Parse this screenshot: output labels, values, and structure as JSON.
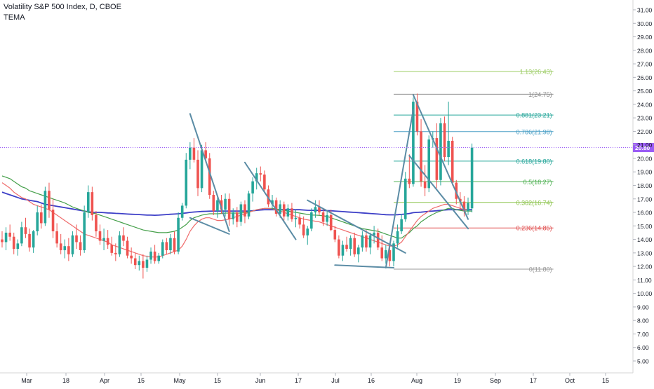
{
  "header": {
    "title": "Volatility S&P 500 Index, D, CBOE",
    "indicator": "TEMA"
  },
  "colors": {
    "up": "#26a69a",
    "down": "#ef5350",
    "ma_blue": "#3d3fc7",
    "ma_green": "#46a04b",
    "ma_red": "#ef6c6c",
    "trendline": "#5b8ca5",
    "price_line": "#9a5cf5"
  },
  "chart_data": {
    "type": "candlestick",
    "symbol": "Volatility S&P 500 Index",
    "interval": "D",
    "exchange": "CBOE",
    "indicators": [
      "TEMA"
    ],
    "current_price": 20.8,
    "current_price_label": "20.80",
    "ylim": [
      4.6,
      31.6
    ],
    "y_ticks": [
      "5.00",
      "6.00",
      "7.00",
      "8.00",
      "9.00",
      "10.00",
      "11.00",
      "12.00",
      "13.00",
      "14.00",
      "15.00",
      "16.00",
      "17.00",
      "18.00",
      "19.00",
      "20.00",
      "21.00",
      "22.00",
      "23.00",
      "24.00",
      "25.00",
      "26.00",
      "27.00",
      "28.00",
      "29.00",
      "30.00",
      "31.00"
    ],
    "x_ticks": [
      "Mar",
      "18",
      "Apr",
      "15",
      "May",
      "15",
      "Jun",
      "17",
      "Jul",
      "16",
      "Aug",
      "19",
      "Sep",
      "17",
      "Oct",
      "15"
    ],
    "candles": [
      [
        14.0,
        14.6,
        13.4,
        13.8
      ],
      [
        13.8,
        14.9,
        13.2,
        14.5
      ],
      [
        14.5,
        15.1,
        13.9,
        14.2
      ],
      [
        14.2,
        14.5,
        12.9,
        13.3
      ],
      [
        13.3,
        14.0,
        12.8,
        13.7
      ],
      [
        13.7,
        15.3,
        13.5,
        14.9
      ],
      [
        14.9,
        15.6,
        14.1,
        14.4
      ],
      [
        14.4,
        14.8,
        13.1,
        13.4
      ],
      [
        13.4,
        14.7,
        13.0,
        14.6
      ],
      [
        14.6,
        16.5,
        14.3,
        16.0
      ],
      [
        16.0,
        16.6,
        14.8,
        15.2
      ],
      [
        15.2,
        17.9,
        15.0,
        17.6
      ],
      [
        17.6,
        18.2,
        15.6,
        16.2
      ],
      [
        16.2,
        17.0,
        14.1,
        14.6
      ],
      [
        14.6,
        15.2,
        13.4,
        13.7
      ],
      [
        13.7,
        14.4,
        12.9,
        13.2
      ],
      [
        13.2,
        14.0,
        12.6,
        13.5
      ],
      [
        13.5,
        14.1,
        12.4,
        12.9
      ],
      [
        12.9,
        14.6,
        12.7,
        14.3
      ],
      [
        14.3,
        15.1,
        13.3,
        13.8
      ],
      [
        13.8,
        14.3,
        12.8,
        13.2
      ],
      [
        13.2,
        16.5,
        13.0,
        16.0
      ],
      [
        16.0,
        18.0,
        15.6,
        17.5
      ],
      [
        17.5,
        17.9,
        15.4,
        15.8
      ],
      [
        15.8,
        16.1,
        14.2,
        14.6
      ],
      [
        14.6,
        15.1,
        13.6,
        13.9
      ],
      [
        13.9,
        14.8,
        13.2,
        14.1
      ],
      [
        14.1,
        14.7,
        13.3,
        13.6
      ],
      [
        13.6,
        14.2,
        12.8,
        13.0
      ],
      [
        13.0,
        13.7,
        12.4,
        12.9
      ],
      [
        12.9,
        14.6,
        12.7,
        14.3
      ],
      [
        14.3,
        14.9,
        13.5,
        13.9
      ],
      [
        13.9,
        14.2,
        12.6,
        12.8
      ],
      [
        12.8,
        13.4,
        12.2,
        12.6
      ],
      [
        12.6,
        13.0,
        11.8,
        12.1
      ],
      [
        12.1,
        12.8,
        11.7,
        12.4
      ],
      [
        12.4,
        12.9,
        11.1,
        11.9
      ],
      [
        11.9,
        12.8,
        11.6,
        12.5
      ],
      [
        12.5,
        13.4,
        12.2,
        13.1
      ],
      [
        13.1,
        13.6,
        12.2,
        12.4
      ],
      [
        12.4,
        13.0,
        12.2,
        12.8
      ],
      [
        12.8,
        14.0,
        12.6,
        13.8
      ],
      [
        13.8,
        14.1,
        12.9,
        13.2
      ],
      [
        13.2,
        14.4,
        12.9,
        14.1
      ],
      [
        14.1,
        14.6,
        12.9,
        13.1
      ],
      [
        13.1,
        16.0,
        12.9,
        15.6
      ],
      [
        15.6,
        16.7,
        15.4,
        16.5
      ],
      [
        16.5,
        20.4,
        16.3,
        19.9
      ],
      [
        19.9,
        21.2,
        19.2,
        20.8
      ],
      [
        20.8,
        21.5,
        19.7,
        19.9
      ],
      [
        19.9,
        20.6,
        17.2,
        17.8
      ],
      [
        17.8,
        21.0,
        17.5,
        20.6
      ],
      [
        20.6,
        21.2,
        19.7,
        20.0
      ],
      [
        20.0,
        20.4,
        17.0,
        17.3
      ],
      [
        17.3,
        17.6,
        15.8,
        16.1
      ],
      [
        16.1,
        17.2,
        15.6,
        16.9
      ],
      [
        16.9,
        17.3,
        15.9,
        16.2
      ],
      [
        16.2,
        17.4,
        15.7,
        17.0
      ],
      [
        17.0,
        17.4,
        15.0,
        15.5
      ],
      [
        15.5,
        16.3,
        15.1,
        16.0
      ],
      [
        16.0,
        16.4,
        14.9,
        15.3
      ],
      [
        15.3,
        16.8,
        15.0,
        16.6
      ],
      [
        16.6,
        16.9,
        15.2,
        15.7
      ],
      [
        15.7,
        17.6,
        15.5,
        17.4
      ],
      [
        17.4,
        18.6,
        16.8,
        18.3
      ],
      [
        18.3,
        19.3,
        17.7,
        18.9
      ],
      [
        18.9,
        19.4,
        18.3,
        18.8
      ],
      [
        18.8,
        19.1,
        17.5,
        17.7
      ],
      [
        17.7,
        18.0,
        16.4,
        16.6
      ],
      [
        16.6,
        17.3,
        16.2,
        16.9
      ],
      [
        16.9,
        17.1,
        15.7,
        15.9
      ],
      [
        15.9,
        16.9,
        15.6,
        16.6
      ],
      [
        16.6,
        16.8,
        15.4,
        15.7
      ],
      [
        15.7,
        16.6,
        15.4,
        16.3
      ],
      [
        16.3,
        16.7,
        15.3,
        15.5
      ],
      [
        15.5,
        16.2,
        14.9,
        15.6
      ],
      [
        15.6,
        15.9,
        14.8,
        15.1
      ],
      [
        15.1,
        15.7,
        14.1,
        14.3
      ],
      [
        14.3,
        15.0,
        13.6,
        14.8
      ],
      [
        14.8,
        16.3,
        14.6,
        16.0
      ],
      [
        16.0,
        16.9,
        15.6,
        16.4
      ],
      [
        16.4,
        16.9,
        15.8,
        16.0
      ],
      [
        16.0,
        16.3,
        15.0,
        15.3
      ],
      [
        15.3,
        16.1,
        15.0,
        15.8
      ],
      [
        15.8,
        16.2,
        14.6,
        14.7
      ],
      [
        14.7,
        15.0,
        13.8,
        14.0
      ],
      [
        14.0,
        14.3,
        12.6,
        12.8
      ],
      [
        12.8,
        13.9,
        12.4,
        13.6
      ],
      [
        13.6,
        14.2,
        13.1,
        13.3
      ],
      [
        13.3,
        14.3,
        12.8,
        14.1
      ],
      [
        14.1,
        14.5,
        12.7,
        12.9
      ],
      [
        12.9,
        13.6,
        12.3,
        13.4
      ],
      [
        13.4,
        14.6,
        13.1,
        14.3
      ],
      [
        14.3,
        14.7,
        13.1,
        13.4
      ],
      [
        13.4,
        14.5,
        12.9,
        14.3
      ],
      [
        14.3,
        15.0,
        13.7,
        14.5
      ],
      [
        14.5,
        14.8,
        13.2,
        13.4
      ],
      [
        13.4,
        14.3,
        12.4,
        12.6
      ],
      [
        12.6,
        13.6,
        12.2,
        13.2
      ],
      [
        13.2,
        13.4,
        12.0,
        12.4
      ],
      [
        12.4,
        13.9,
        12.0,
        13.7
      ],
      [
        13.7,
        15.1,
        13.4,
        14.6
      ],
      [
        14.6,
        15.9,
        14.4,
        15.5
      ],
      [
        15.5,
        19.0,
        15.3,
        18.5
      ],
      [
        18.5,
        20.3,
        17.8,
        18.1
      ],
      [
        18.1,
        24.5,
        17.9,
        24.2
      ],
      [
        24.2,
        24.8,
        21.7,
        22.0
      ],
      [
        22.0,
        22.9,
        17.9,
        18.3
      ],
      [
        18.3,
        19.5,
        17.2,
        17.8
      ],
      [
        17.8,
        21.7,
        17.5,
        21.4
      ],
      [
        21.4,
        22.0,
        20.8,
        21.5
      ],
      [
        21.5,
        22.6,
        17.8,
        18.4
      ],
      [
        18.4,
        23.0,
        18.0,
        22.6
      ],
      [
        22.6,
        23.1,
        19.8,
        20.1
      ],
      [
        20.1,
        24.2,
        19.5,
        21.3
      ],
      [
        21.3,
        21.6,
        18.0,
        18.2
      ],
      [
        18.2,
        18.4,
        16.6,
        17.0
      ],
      [
        17.0,
        17.5,
        16.2,
        16.8
      ],
      [
        16.8,
        17.2,
        15.7,
        16.1
      ],
      [
        16.1,
        17.1,
        15.8,
        16.7
      ],
      [
        16.3,
        21.1,
        16.0,
        20.8
      ]
    ],
    "fibonacci_levels": [
      {
        "label": "0(11.80)",
        "ratio": 0,
        "price": 11.8,
        "color": "#999999"
      },
      {
        "label": "0.236(14.85)",
        "ratio": 0.236,
        "price": 14.85,
        "color": "#e04d4d"
      },
      {
        "label": "0.382(16.74)",
        "ratio": 0.382,
        "price": 16.74,
        "color": "#8bc34a"
      },
      {
        "label": "0.5(18.27)",
        "ratio": 0.5,
        "price": 18.27,
        "color": "#4caf50"
      },
      {
        "label": "0.618(19.80)",
        "ratio": 0.618,
        "price": 19.8,
        "color": "#26a69a"
      },
      {
        "label": "0.786(21.98)",
        "ratio": 0.786,
        "price": 21.98,
        "color": "#4a9fc6"
      },
      {
        "label": "0.881(23.21)",
        "ratio": 0.881,
        "price": 23.21,
        "color": "#26a69a"
      },
      {
        "label": "1(24.75)",
        "ratio": 1,
        "price": 24.75,
        "color": "#888888"
      },
      {
        "label": "1.13(26.43)",
        "ratio": 1.13,
        "price": 26.43,
        "color": "#9ccc65"
      }
    ],
    "trendlines": [
      [
        [
          48,
          23.3
        ],
        [
          58,
          14.6
        ]
      ],
      [
        [
          48,
          15.6
        ],
        [
          58,
          14.4
        ]
      ],
      [
        [
          62,
          19.7
        ],
        [
          75,
          14.0
        ]
      ],
      [
        [
          78,
          16.9
        ],
        [
          103,
          13.0
        ]
      ],
      [
        [
          85,
          12.1
        ],
        [
          100,
          11.9
        ]
      ],
      [
        [
          98,
          11.9
        ],
        [
          105,
          23.6
        ]
      ],
      [
        [
          105,
          24.7
        ],
        [
          119,
          15.5
        ]
      ],
      [
        [
          104,
          20.2
        ],
        [
          119,
          14.8
        ]
      ]
    ],
    "moving_averages": [
      {
        "name": "",
        "color": "#3d3fc7",
        "values": [
          17.5,
          17.4,
          17.3,
          17.2,
          17.1,
          17.0,
          16.95,
          16.9,
          16.85,
          16.8,
          16.7,
          16.6,
          16.55,
          16.5,
          16.45,
          16.4,
          16.35,
          16.3,
          16.25,
          16.2,
          16.15,
          16.1,
          16.05,
          16.0,
          16.0,
          16.0,
          15.98,
          15.96,
          15.95,
          15.93,
          15.92,
          15.9,
          15.88,
          15.86,
          15.85,
          15.84,
          15.82,
          15.8,
          15.8,
          15.79,
          15.8,
          15.82,
          15.84,
          15.86,
          15.88,
          15.9,
          15.93,
          15.96,
          16.0,
          16.03,
          16.05,
          16.07,
          16.08,
          16.09,
          16.1,
          16.1,
          16.1,
          16.1,
          16.1,
          16.1,
          16.1,
          16.1,
          16.1,
          16.1,
          16.12,
          16.15,
          16.18,
          16.2,
          16.2,
          16.2,
          16.2,
          16.2,
          16.2,
          16.2,
          16.2,
          16.2,
          16.2,
          16.18,
          16.16,
          16.15,
          16.15,
          16.15,
          16.14,
          16.13,
          16.12,
          16.1,
          16.08,
          16.06,
          16.04,
          16.02,
          16.0,
          15.98,
          15.96,
          15.94,
          15.92,
          15.9,
          15.88,
          15.85,
          15.83,
          15.82,
          15.82,
          15.83,
          15.85,
          15.88,
          15.92,
          15.98,
          16.0,
          16.02,
          16.05,
          16.08,
          16.1,
          16.12,
          16.15,
          16.18,
          16.2,
          16.2,
          16.2,
          16.2,
          16.2,
          16.2,
          16.2
        ]
      },
      {
        "name": "",
        "color": "#46a04b",
        "values": [
          18.7,
          18.6,
          18.5,
          18.3,
          18.1,
          17.9,
          17.8,
          17.6,
          17.5,
          17.4,
          17.3,
          17.2,
          17.1,
          17.0,
          16.9,
          16.8,
          16.7,
          16.55,
          16.4,
          16.3,
          16.2,
          16.1,
          16.0,
          15.95,
          15.9,
          15.8,
          15.7,
          15.6,
          15.5,
          15.4,
          15.3,
          15.2,
          15.1,
          15.0,
          14.9,
          14.8,
          14.7,
          14.65,
          14.6,
          14.55,
          14.5,
          14.5,
          14.5,
          14.55,
          14.6,
          14.7,
          14.9,
          15.1,
          15.4,
          15.6,
          15.7,
          15.8,
          15.85,
          15.9,
          15.9,
          15.9,
          15.92,
          15.95,
          15.95,
          15.95,
          15.95,
          15.95,
          16.0,
          16.05,
          16.1,
          16.2,
          16.25,
          16.3,
          16.3,
          16.3,
          16.25,
          16.2,
          16.15,
          16.1,
          16.05,
          16.0,
          15.95,
          15.9,
          15.85,
          15.8,
          15.8,
          15.78,
          15.75,
          15.7,
          15.6,
          15.5,
          15.4,
          15.3,
          15.2,
          15.1,
          15.0,
          14.9,
          14.8,
          14.75,
          14.7,
          14.65,
          14.6,
          14.5,
          14.4,
          14.3,
          14.2,
          14.1,
          14.1,
          14.3,
          14.5,
          14.8,
          15.0,
          15.3,
          15.5,
          15.7,
          15.85,
          16.0,
          16.1,
          16.2,
          16.3,
          16.3,
          16.2,
          16.15,
          16.1,
          16.1,
          16.1
        ]
      },
      {
        "name": "",
        "color": "#ef6c6c",
        "values": [
          18.2,
          18.0,
          17.8,
          17.5,
          17.3,
          17.1,
          17.0,
          16.8,
          16.6,
          16.5,
          16.4,
          16.3,
          16.2,
          16.0,
          15.8,
          15.6,
          15.4,
          15.2,
          15.0,
          14.8,
          14.6,
          14.4,
          14.3,
          14.2,
          14.1,
          14.0,
          13.9,
          13.8,
          13.6,
          13.5,
          13.4,
          13.3,
          13.2,
          13.1,
          13.0,
          12.9,
          12.8,
          12.75,
          12.7,
          12.7,
          12.7,
          12.8,
          12.9,
          13.0,
          13.1,
          13.2,
          13.5,
          14.0,
          14.6,
          15.0,
          15.3,
          15.5,
          15.6,
          15.6,
          15.5,
          15.4,
          15.4,
          15.45,
          15.5,
          15.6,
          15.7,
          15.8,
          15.9,
          16.0,
          16.1,
          16.2,
          16.25,
          16.3,
          16.3,
          16.25,
          16.2,
          16.1,
          16.0,
          15.9,
          15.8,
          15.7,
          15.6,
          15.5,
          15.45,
          15.4,
          15.35,
          15.3,
          15.2,
          15.1,
          15.0,
          14.9,
          14.8,
          14.7,
          14.6,
          14.5,
          14.4,
          14.3,
          14.2,
          14.1,
          14.0,
          13.9,
          13.8,
          13.7,
          13.6,
          13.5,
          13.5,
          13.6,
          13.8,
          14.2,
          14.6,
          15.0,
          15.4,
          15.7,
          15.9,
          16.1,
          16.3,
          16.4,
          16.5,
          16.6,
          16.6,
          16.5,
          16.4,
          16.3,
          16.2,
          16.2
        ]
      }
    ]
  }
}
